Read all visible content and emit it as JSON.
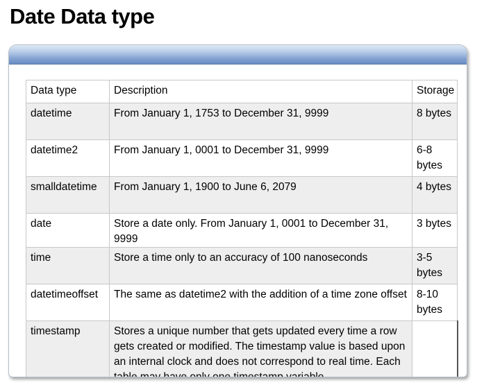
{
  "title": "Date Data type",
  "table": {
    "headers": [
      "Data type",
      "Description",
      "Storage"
    ],
    "rows": [
      {
        "type": "datetime",
        "description": "From January 1, 1753 to December 31, 9999",
        "storage": "8 bytes"
      },
      {
        "type": "datetime2",
        "description": "From January 1, 0001 to December 31, 9999",
        "storage": "6-8 bytes"
      },
      {
        "type": "smalldatetime",
        "description": "From January 1, 1900 to June 6, 2079",
        "storage": "4 bytes"
      },
      {
        "type": "date",
        "description": "Store a date only. From January 1, 0001 to December 31, 9999",
        "storage": "3 bytes"
      },
      {
        "type": "time",
        "description": "Store a time only to an accuracy of 100 nanoseconds",
        "storage": "3-5 bytes"
      },
      {
        "type": "datetimeoffset",
        "description": "The same as datetime2 with the addition of a time zone offset",
        "storage": "8-10 bytes"
      },
      {
        "type": "timestamp",
        "description": "Stores a unique number that gets updated every time a row gets created or modified. The timestamp value is based upon an internal clock and does not correspond to real time. Each table may have only one timestamp variable",
        "storage": ""
      }
    ]
  }
}
